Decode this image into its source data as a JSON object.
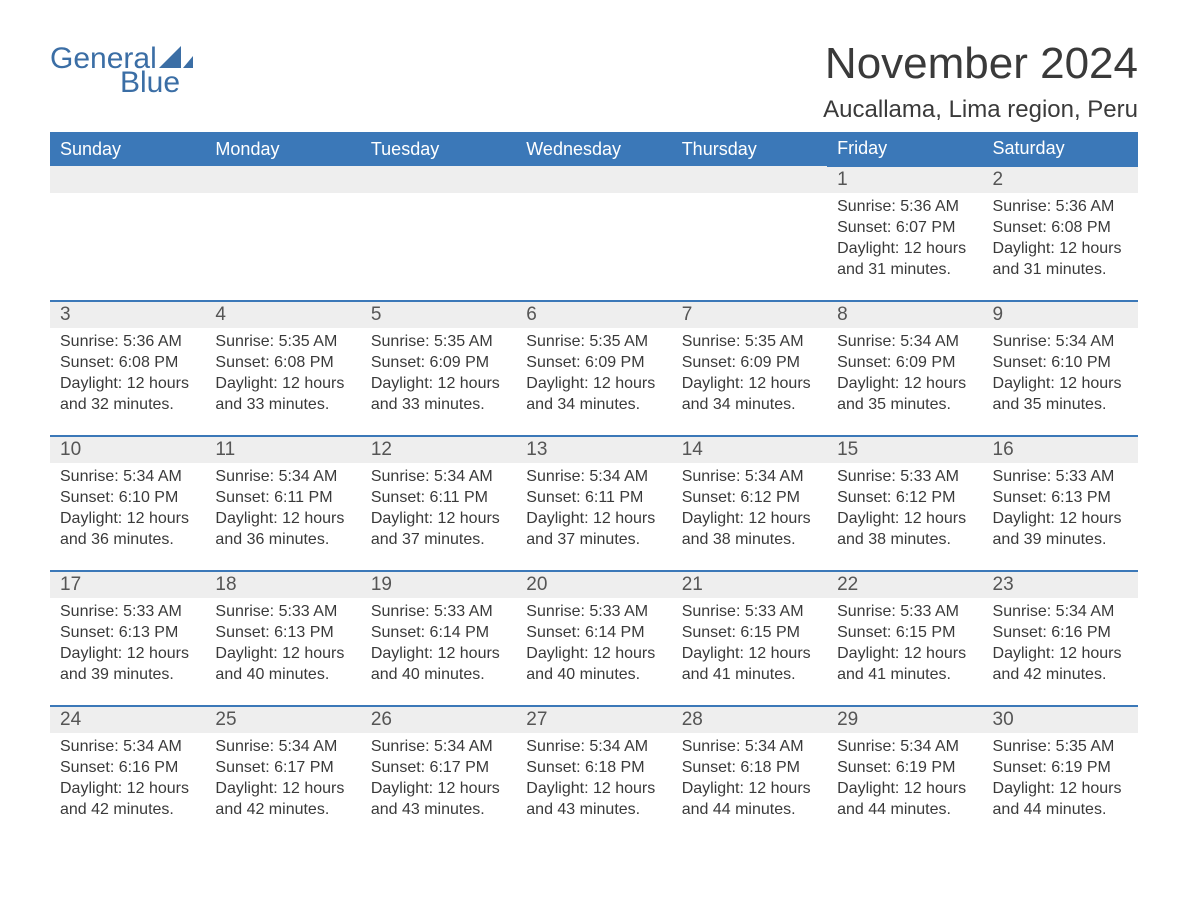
{
  "logo": {
    "line1": "General",
    "line2": "Blue",
    "color": "#3b6ea5"
  },
  "header": {
    "month_title": "November 2024",
    "location": "Aucallama, Lima region, Peru"
  },
  "colors": {
    "header_bg": "#3b78b8",
    "header_text": "#ffffff",
    "daynum_bg": "#eeeeee",
    "row_border": "#3b78b8",
    "body_text": "#3a3a3a",
    "page_bg": "#ffffff"
  },
  "typography": {
    "month_title_fontsize": 44,
    "location_fontsize": 24,
    "weekday_fontsize": 18,
    "daynum_fontsize": 19,
    "cell_fontsize": 16,
    "font_family": "Arial"
  },
  "labels": {
    "sunrise": "Sunrise:",
    "sunset": "Sunset:",
    "daylight": "Daylight:"
  },
  "calendar": {
    "type": "table",
    "columns": [
      "Sunday",
      "Monday",
      "Tuesday",
      "Wednesday",
      "Thursday",
      "Friday",
      "Saturday"
    ],
    "weeks": [
      [
        null,
        null,
        null,
        null,
        null,
        {
          "day": "1",
          "sunrise": "5:36 AM",
          "sunset": "6:07 PM",
          "daylight": "12 hours and 31 minutes."
        },
        {
          "day": "2",
          "sunrise": "5:36 AM",
          "sunset": "6:08 PM",
          "daylight": "12 hours and 31 minutes."
        }
      ],
      [
        {
          "day": "3",
          "sunrise": "5:36 AM",
          "sunset": "6:08 PM",
          "daylight": "12 hours and 32 minutes."
        },
        {
          "day": "4",
          "sunrise": "5:35 AM",
          "sunset": "6:08 PM",
          "daylight": "12 hours and 33 minutes."
        },
        {
          "day": "5",
          "sunrise": "5:35 AM",
          "sunset": "6:09 PM",
          "daylight": "12 hours and 33 minutes."
        },
        {
          "day": "6",
          "sunrise": "5:35 AM",
          "sunset": "6:09 PM",
          "daylight": "12 hours and 34 minutes."
        },
        {
          "day": "7",
          "sunrise": "5:35 AM",
          "sunset": "6:09 PM",
          "daylight": "12 hours and 34 minutes."
        },
        {
          "day": "8",
          "sunrise": "5:34 AM",
          "sunset": "6:09 PM",
          "daylight": "12 hours and 35 minutes."
        },
        {
          "day": "9",
          "sunrise": "5:34 AM",
          "sunset": "6:10 PM",
          "daylight": "12 hours and 35 minutes."
        }
      ],
      [
        {
          "day": "10",
          "sunrise": "5:34 AM",
          "sunset": "6:10 PM",
          "daylight": "12 hours and 36 minutes."
        },
        {
          "day": "11",
          "sunrise": "5:34 AM",
          "sunset": "6:11 PM",
          "daylight": "12 hours and 36 minutes."
        },
        {
          "day": "12",
          "sunrise": "5:34 AM",
          "sunset": "6:11 PM",
          "daylight": "12 hours and 37 minutes."
        },
        {
          "day": "13",
          "sunrise": "5:34 AM",
          "sunset": "6:11 PM",
          "daylight": "12 hours and 37 minutes."
        },
        {
          "day": "14",
          "sunrise": "5:34 AM",
          "sunset": "6:12 PM",
          "daylight": "12 hours and 38 minutes."
        },
        {
          "day": "15",
          "sunrise": "5:33 AM",
          "sunset": "6:12 PM",
          "daylight": "12 hours and 38 minutes."
        },
        {
          "day": "16",
          "sunrise": "5:33 AM",
          "sunset": "6:13 PM",
          "daylight": "12 hours and 39 minutes."
        }
      ],
      [
        {
          "day": "17",
          "sunrise": "5:33 AM",
          "sunset": "6:13 PM",
          "daylight": "12 hours and 39 minutes."
        },
        {
          "day": "18",
          "sunrise": "5:33 AM",
          "sunset": "6:13 PM",
          "daylight": "12 hours and 40 minutes."
        },
        {
          "day": "19",
          "sunrise": "5:33 AM",
          "sunset": "6:14 PM",
          "daylight": "12 hours and 40 minutes."
        },
        {
          "day": "20",
          "sunrise": "5:33 AM",
          "sunset": "6:14 PM",
          "daylight": "12 hours and 40 minutes."
        },
        {
          "day": "21",
          "sunrise": "5:33 AM",
          "sunset": "6:15 PM",
          "daylight": "12 hours and 41 minutes."
        },
        {
          "day": "22",
          "sunrise": "5:33 AM",
          "sunset": "6:15 PM",
          "daylight": "12 hours and 41 minutes."
        },
        {
          "day": "23",
          "sunrise": "5:34 AM",
          "sunset": "6:16 PM",
          "daylight": "12 hours and 42 minutes."
        }
      ],
      [
        {
          "day": "24",
          "sunrise": "5:34 AM",
          "sunset": "6:16 PM",
          "daylight": "12 hours and 42 minutes."
        },
        {
          "day": "25",
          "sunrise": "5:34 AM",
          "sunset": "6:17 PM",
          "daylight": "12 hours and 42 minutes."
        },
        {
          "day": "26",
          "sunrise": "5:34 AM",
          "sunset": "6:17 PM",
          "daylight": "12 hours and 43 minutes."
        },
        {
          "day": "27",
          "sunrise": "5:34 AM",
          "sunset": "6:18 PM",
          "daylight": "12 hours and 43 minutes."
        },
        {
          "day": "28",
          "sunrise": "5:34 AM",
          "sunset": "6:18 PM",
          "daylight": "12 hours and 44 minutes."
        },
        {
          "day": "29",
          "sunrise": "5:34 AM",
          "sunset": "6:19 PM",
          "daylight": "12 hours and 44 minutes."
        },
        {
          "day": "30",
          "sunrise": "5:35 AM",
          "sunset": "6:19 PM",
          "daylight": "12 hours and 44 minutes."
        }
      ]
    ]
  }
}
